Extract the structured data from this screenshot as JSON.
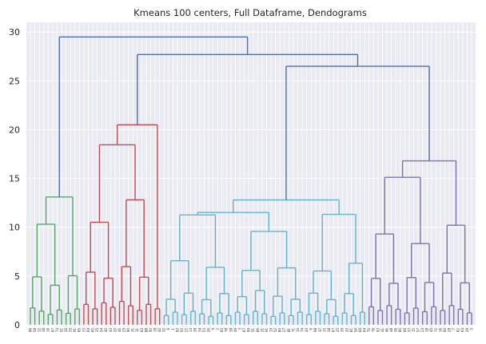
{
  "chart_data": {
    "type": "dendrogram",
    "title": "Kmeans 100 centers, Full Dataframe, Dendograms",
    "xlabel": "",
    "ylabel": "",
    "ylim": [
      0,
      31
    ],
    "yticks": [
      0,
      5,
      10,
      15,
      20,
      25,
      30
    ],
    "grid": true,
    "leaf_count": 100,
    "clusters": [
      {
        "color": "#55a868",
        "leaf_range": [
          0,
          11
        ],
        "top_height": 13.1
      },
      {
        "color": "#c44e52",
        "leaf_range": [
          12,
          29
        ],
        "top_height": 20.5
      },
      {
        "color": "#64b5cd",
        "leaf_range": [
          30,
          75
        ],
        "top_height": 12.8
      },
      {
        "color": "#8172b3",
        "leaf_range": [
          76,
          99
        ],
        "top_height": 16.8
      }
    ],
    "link_color": "#4c72b0",
    "merges": [
      {
        "a": "red",
        "b": "cyan+purple",
        "height": 27.7
      },
      {
        "a": "cyan",
        "b": "purple",
        "height": 26.5
      },
      {
        "a": "green",
        "b": "red+cyan+purple",
        "height": 29.5
      }
    ],
    "tick_labels": [
      "96",
      "58",
      "12",
      "38",
      "16",
      "67",
      "74",
      "51",
      "26",
      "35",
      "91",
      "85",
      "33",
      "69",
      "65",
      "35",
      "54",
      "40",
      "43",
      "20",
      "44",
      "25",
      "90",
      "31",
      "11",
      "62",
      "88",
      "50",
      "18",
      "42",
      "32",
      "6",
      "1",
      "92",
      "50",
      "22",
      "13",
      "38",
      "34",
      "53",
      "26",
      "9",
      "2",
      "60",
      "78",
      "38",
      "49",
      "3",
      "87",
      "99",
      "51",
      "86",
      "21",
      "91",
      "19",
      "52",
      "80",
      "27",
      "81",
      "71",
      "14",
      "74",
      "43",
      "6",
      "98",
      "37",
      "10",
      "38",
      "67",
      "25",
      "39",
      "20",
      "81",
      "54",
      "66",
      "64",
      "70",
      "76",
      "93",
      "41",
      "46",
      "48",
      "36",
      "80",
      "66",
      "37",
      "15",
      "57",
      "23",
      "18",
      "45",
      "72",
      "16",
      "94",
      "28",
      "7",
      "62",
      "64",
      "29",
      "5"
    ]
  }
}
